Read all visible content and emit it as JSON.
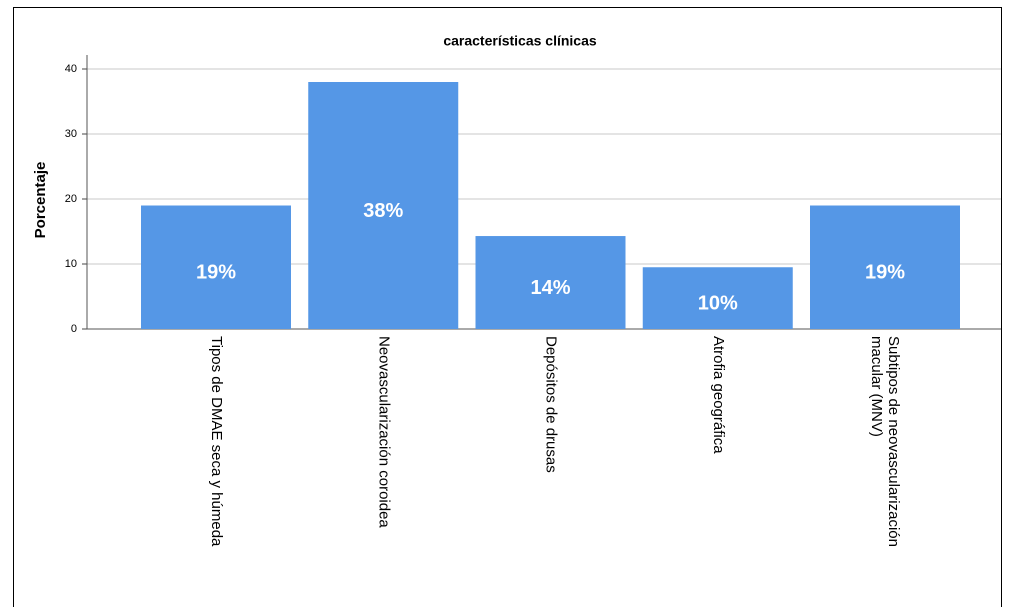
{
  "chart_data": {
    "type": "bar",
    "title": "características clínicas",
    "y_label": "Porcentaje",
    "categories": [
      "Tipos de DMAE seca y húmeda",
      "Neovascularización coroidea",
      "Depósitos de drusas",
      "Atrofia geográfica",
      "Subtipos de neovascularización macular (MNV)"
    ],
    "values": [
      19,
      38,
      14.3,
      9.5,
      19
    ],
    "value_labels": [
      "19%",
      "38%",
      "14%",
      "10%",
      "19%"
    ],
    "color": "#5597e6",
    "ylim": [
      0,
      40
    ],
    "yticks": [
      0,
      10,
      20,
      30,
      40
    ],
    "grid": true
  }
}
